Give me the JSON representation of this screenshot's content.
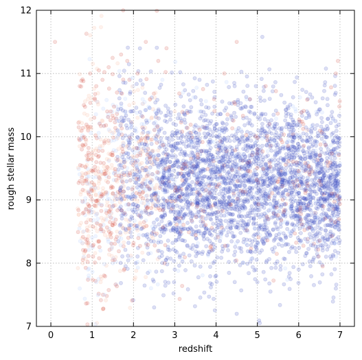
{
  "chart_data": {
    "type": "scatter",
    "title": "",
    "xlabel": "redshift",
    "ylabel": "rough stellar mass",
    "xlim": [
      -0.35,
      7.35
    ],
    "ylim": [
      7,
      12
    ],
    "xticks": [
      "0",
      "1",
      "2",
      "3",
      "4",
      "5",
      "6",
      "7"
    ],
    "yticks": [
      "7",
      "8",
      "9",
      "10",
      "11",
      "12"
    ],
    "grid": true,
    "grid_style": "dotted",
    "legend": "none",
    "marker_opacity": 0.18,
    "colors": {
      "high_z": "#3b4cc0",
      "mid_z_light": "#aac7fd",
      "mid_z_warm": "#f7b89c",
      "low_z": "#d44e41"
    },
    "series": [
      {
        "color": "#d44e41",
        "description_points": [
          [
            0.7,
            10.8
          ],
          [
            0.75,
            9.8
          ],
          [
            0.8,
            10.5
          ],
          [
            0.8,
            8.8
          ],
          [
            0.85,
            9.3
          ],
          [
            0.9,
            10.1
          ],
          [
            0.95,
            11.0
          ],
          [
            1.0,
            9.0
          ],
          [
            1.05,
            10.3
          ],
          [
            1.1,
            10.8
          ],
          [
            1.1,
            9.6
          ],
          [
            1.2,
            8.6
          ],
          [
            1.25,
            10.9
          ],
          [
            1.3,
            9.9
          ],
          [
            1.4,
            11.1
          ],
          [
            1.45,
            10.4
          ],
          [
            1.5,
            9.2
          ],
          [
            1.6,
            10.7
          ],
          [
            1.7,
            11.3
          ],
          [
            1.75,
            12.0
          ],
          [
            1.85,
            11.2
          ],
          [
            1.9,
            10.9
          ],
          [
            2.1,
            11.0
          ],
          [
            2.3,
            11.5
          ],
          [
            2.6,
            11.2
          ],
          [
            2.8,
            11.4
          ],
          [
            6.5,
            9.3
          ],
          [
            6.6,
            8.9
          ],
          [
            6.7,
            9.6
          ],
          [
            6.8,
            9.1
          ],
          [
            6.9,
            11.0
          ],
          [
            6.95,
            11.2
          ],
          [
            5.2,
            10.8
          ],
          [
            4.2,
            11.0
          ],
          [
            4.5,
            11.5
          ],
          [
            0.1,
            11.5
          ]
        ]
      },
      {
        "color": "#f7b89c",
        "description_points": [
          [
            0.7,
            8.6
          ],
          [
            0.8,
            9.3
          ],
          [
            0.9,
            8.3
          ],
          [
            1.0,
            9.7
          ],
          [
            1.1,
            8.9
          ],
          [
            1.2,
            9.4
          ],
          [
            1.3,
            8.7
          ],
          [
            1.4,
            9.9
          ],
          [
            1.5,
            9.1
          ],
          [
            1.6,
            8.5
          ],
          [
            1.7,
            10.2
          ],
          [
            1.8,
            9.6
          ],
          [
            1.9,
            10.5
          ],
          [
            2.0,
            9.0
          ],
          [
            2.1,
            10.3
          ],
          [
            2.2,
            9.8
          ],
          [
            2.4,
            10.6
          ],
          [
            2.6,
            10.0
          ],
          [
            2.8,
            9.5
          ],
          [
            3.0,
            10.4
          ],
          [
            5.9,
            9.2
          ],
          [
            6.3,
            9.5
          ],
          [
            6.4,
            8.8
          ],
          [
            6.2,
            10.1
          ]
        ]
      },
      {
        "color": "#aac7fd",
        "description_points": [
          [
            0.7,
            7.6
          ],
          [
            0.8,
            8.1
          ],
          [
            0.9,
            7.9
          ],
          [
            1.0,
            8.4
          ],
          [
            1.1,
            7.7
          ],
          [
            1.2,
            8.2
          ],
          [
            1.3,
            7.5
          ],
          [
            1.5,
            8.0
          ],
          [
            1.6,
            10.0
          ],
          [
            1.8,
            10.6
          ],
          [
            2.0,
            10.8
          ],
          [
            2.2,
            10.2
          ],
          [
            2.5,
            9.7
          ],
          [
            2.7,
            10.9
          ],
          [
            3.0,
            9.3
          ],
          [
            3.2,
            10.7
          ],
          [
            3.4,
            9.9
          ],
          [
            3.6,
            10.4
          ]
        ]
      },
      {
        "color": "#3b4cc0",
        "description_points": [
          [
            1.5,
            8.9
          ],
          [
            1.7,
            9.2
          ],
          [
            1.9,
            8.6
          ],
          [
            2.0,
            9.4
          ],
          [
            2.2,
            8.8
          ],
          [
            2.4,
            9.6
          ],
          [
            2.6,
            9.0
          ],
          [
            2.8,
            9.8
          ],
          [
            3.0,
            8.7
          ],
          [
            3.2,
            9.5
          ],
          [
            3.4,
            9.1
          ],
          [
            3.5,
            9.9
          ],
          [
            3.7,
            8.9
          ],
          [
            3.9,
            9.4
          ],
          [
            4.0,
            10.2
          ],
          [
            4.2,
            9.0
          ],
          [
            4.4,
            9.6
          ],
          [
            4.6,
            8.6
          ],
          [
            4.8,
            9.3
          ],
          [
            5.0,
            9.8
          ],
          [
            5.2,
            9.1
          ],
          [
            5.4,
            8.8
          ],
          [
            5.6,
            9.5
          ],
          [
            5.8,
            9.0
          ],
          [
            6.0,
            8.7
          ],
          [
            6.2,
            9.3
          ],
          [
            6.4,
            9.7
          ],
          [
            6.6,
            9.0
          ],
          [
            6.8,
            8.9
          ],
          [
            6.95,
            9.4
          ],
          [
            3.0,
            7.9
          ],
          [
            4.0,
            7.8
          ],
          [
            5.0,
            7.7
          ],
          [
            6.0,
            7.9
          ],
          [
            2.5,
            7.3
          ],
          [
            4.5,
            7.2
          ],
          [
            6.9,
            7.6
          ],
          [
            3.6,
            10.9
          ],
          [
            5.3,
            10.6
          ],
          [
            6.7,
            10.5
          ]
        ]
      }
    ]
  }
}
